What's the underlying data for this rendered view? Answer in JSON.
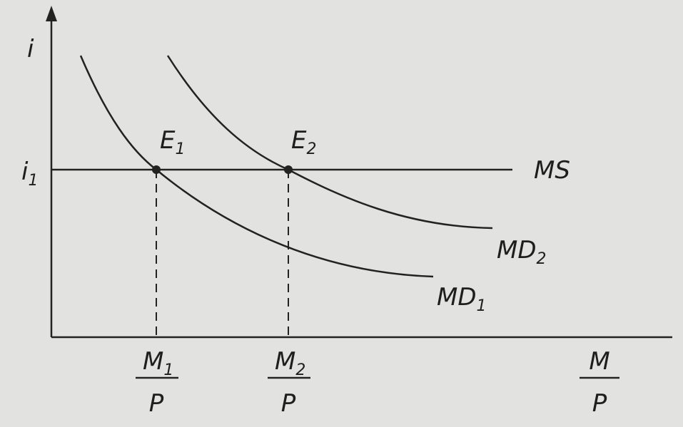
{
  "axes": {
    "y_label": "i",
    "x_label": {
      "numerator": "M",
      "denominator": "P"
    }
  },
  "level": {
    "main": "i",
    "sub": "1"
  },
  "points": [
    {
      "main": "E",
      "sub": "1"
    },
    {
      "main": "E",
      "sub": "2"
    }
  ],
  "curves": {
    "supply": "MS",
    "demand": [
      {
        "main": "MD",
        "sub": "1"
      },
      {
        "main": "MD",
        "sub": "2"
      }
    ]
  },
  "quantities": [
    {
      "numerator": {
        "main": "M",
        "sub": "1"
      },
      "denominator": "P"
    },
    {
      "numerator": {
        "main": "M",
        "sub": "2"
      },
      "denominator": "P"
    }
  ]
}
